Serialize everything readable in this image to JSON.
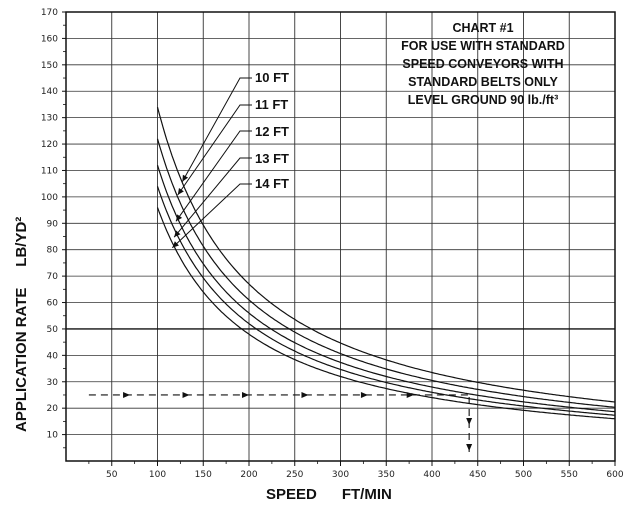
{
  "chart_data": {
    "type": "line",
    "title_lines": [
      "CHART #1",
      "FOR USE WITH STANDARD",
      "SPEED CONVEYORS WITH",
      "STANDARD BELTS ONLY",
      "LEVEL GROUND 90 lb./ft³"
    ],
    "xlabel": "SPEED      FT/MIN",
    "ylabel": "APPLICATION RATE     LB/YD²",
    "xlim": [
      0,
      600
    ],
    "ylim": [
      0,
      170
    ],
    "x_ticks": [
      50,
      100,
      150,
      200,
      250,
      300,
      350,
      400,
      450,
      500,
      550,
      600
    ],
    "y_ticks": [
      10,
      20,
      30,
      40,
      50,
      60,
      70,
      80,
      90,
      100,
      110,
      120,
      130,
      140,
      150,
      160,
      170
    ],
    "x_tick_labels": [
      "50",
      "100",
      "150",
      "200",
      "250",
      "300",
      "350",
      "400",
      "450",
      "500",
      "550",
      "600"
    ],
    "y_tick_labels": [
      "10",
      "20",
      "30",
      "40",
      "50",
      "60",
      "70",
      "80",
      "90",
      "100",
      "110",
      "120",
      "130",
      "140",
      "150",
      "160",
      "170"
    ],
    "grid": true,
    "series": [
      {
        "name": "10 FT",
        "x": [
          100,
          150,
          200,
          250,
          300,
          350,
          400,
          450,
          500,
          550,
          600
        ],
        "y": [
          134,
          89,
          67,
          54,
          45,
          38,
          34,
          30,
          27,
          24,
          22
        ]
      },
      {
        "name": "11 FT",
        "x": [
          100,
          150,
          200,
          250,
          300,
          350,
          400,
          450,
          500,
          550,
          600
        ],
        "y": [
          122,
          81,
          61,
          49,
          41,
          35,
          31,
          27,
          24,
          22,
          20
        ]
      },
      {
        "name": "12 FT",
        "x": [
          100,
          150,
          200,
          250,
          300,
          350,
          400,
          450,
          500,
          550,
          600
        ],
        "y": [
          112,
          75,
          56,
          45,
          37,
          32,
          28,
          25,
          22,
          20,
          19
        ]
      },
      {
        "name": "13 FT",
        "x": [
          100,
          150,
          200,
          250,
          300,
          350,
          400,
          450,
          500,
          550,
          600
        ],
        "y": [
          104,
          69,
          52,
          42,
          35,
          30,
          26,
          23,
          21,
          19,
          17
        ]
      },
      {
        "name": "14 FT",
        "x": [
          100,
          150,
          200,
          250,
          300,
          350,
          400,
          450,
          500,
          550,
          600
        ],
        "y": [
          96,
          64,
          48,
          38,
          32,
          27,
          24,
          21,
          19,
          17,
          16
        ]
      }
    ],
    "example_path": {
      "rate": 25,
      "speed": 410
    },
    "curve_labels": [
      "10 FT",
      "11 FT",
      "12 FT",
      "13 FT",
      "14 FT"
    ]
  }
}
